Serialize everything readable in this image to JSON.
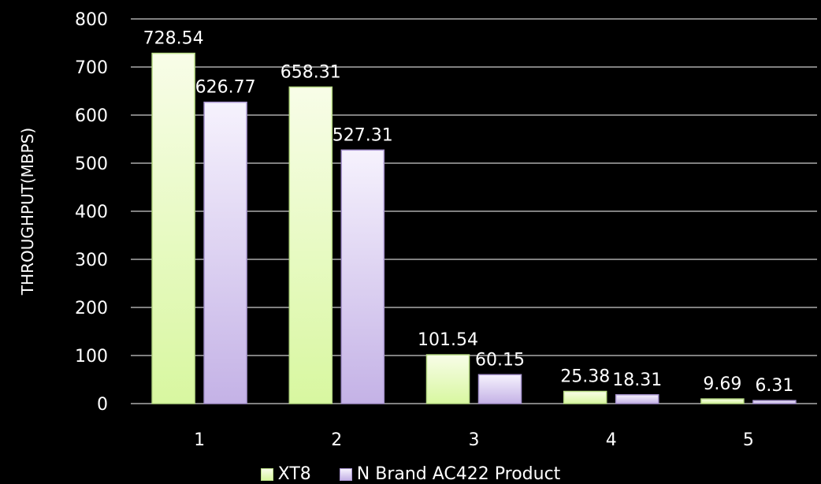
{
  "chart_data": {
    "type": "bar",
    "title": "",
    "xlabel": "",
    "ylabel": "THROUGHPUT(MBPS)",
    "ylim": [
      0,
      800
    ],
    "yticks": [
      0,
      100,
      200,
      300,
      400,
      500,
      600,
      700,
      800
    ],
    "grid": true,
    "legend_position": "bottom",
    "categories": [
      "1",
      "2",
      "3",
      "4",
      "5"
    ],
    "series": [
      {
        "name": "XT8",
        "values": [
          728.54,
          658.31,
          101.54,
          25.38,
          9.69
        ],
        "labels": [
          "728.54",
          "658.31",
          "101.54",
          "25.38",
          "9.69"
        ],
        "color_top": "#f8fde8",
        "color_bottom": "#d8f7a0",
        "edge": "#b9dc86"
      },
      {
        "name": "N Brand AC422 Product",
        "values": [
          626.77,
          527.31,
          60.15,
          18.31,
          6.31
        ],
        "labels": [
          "626.77",
          "527.31",
          "60.15",
          "18.31",
          "6.31"
        ],
        "color_top": "#f6f2fd",
        "color_bottom": "#c4b2e6",
        "edge": "#a996d0"
      }
    ]
  }
}
